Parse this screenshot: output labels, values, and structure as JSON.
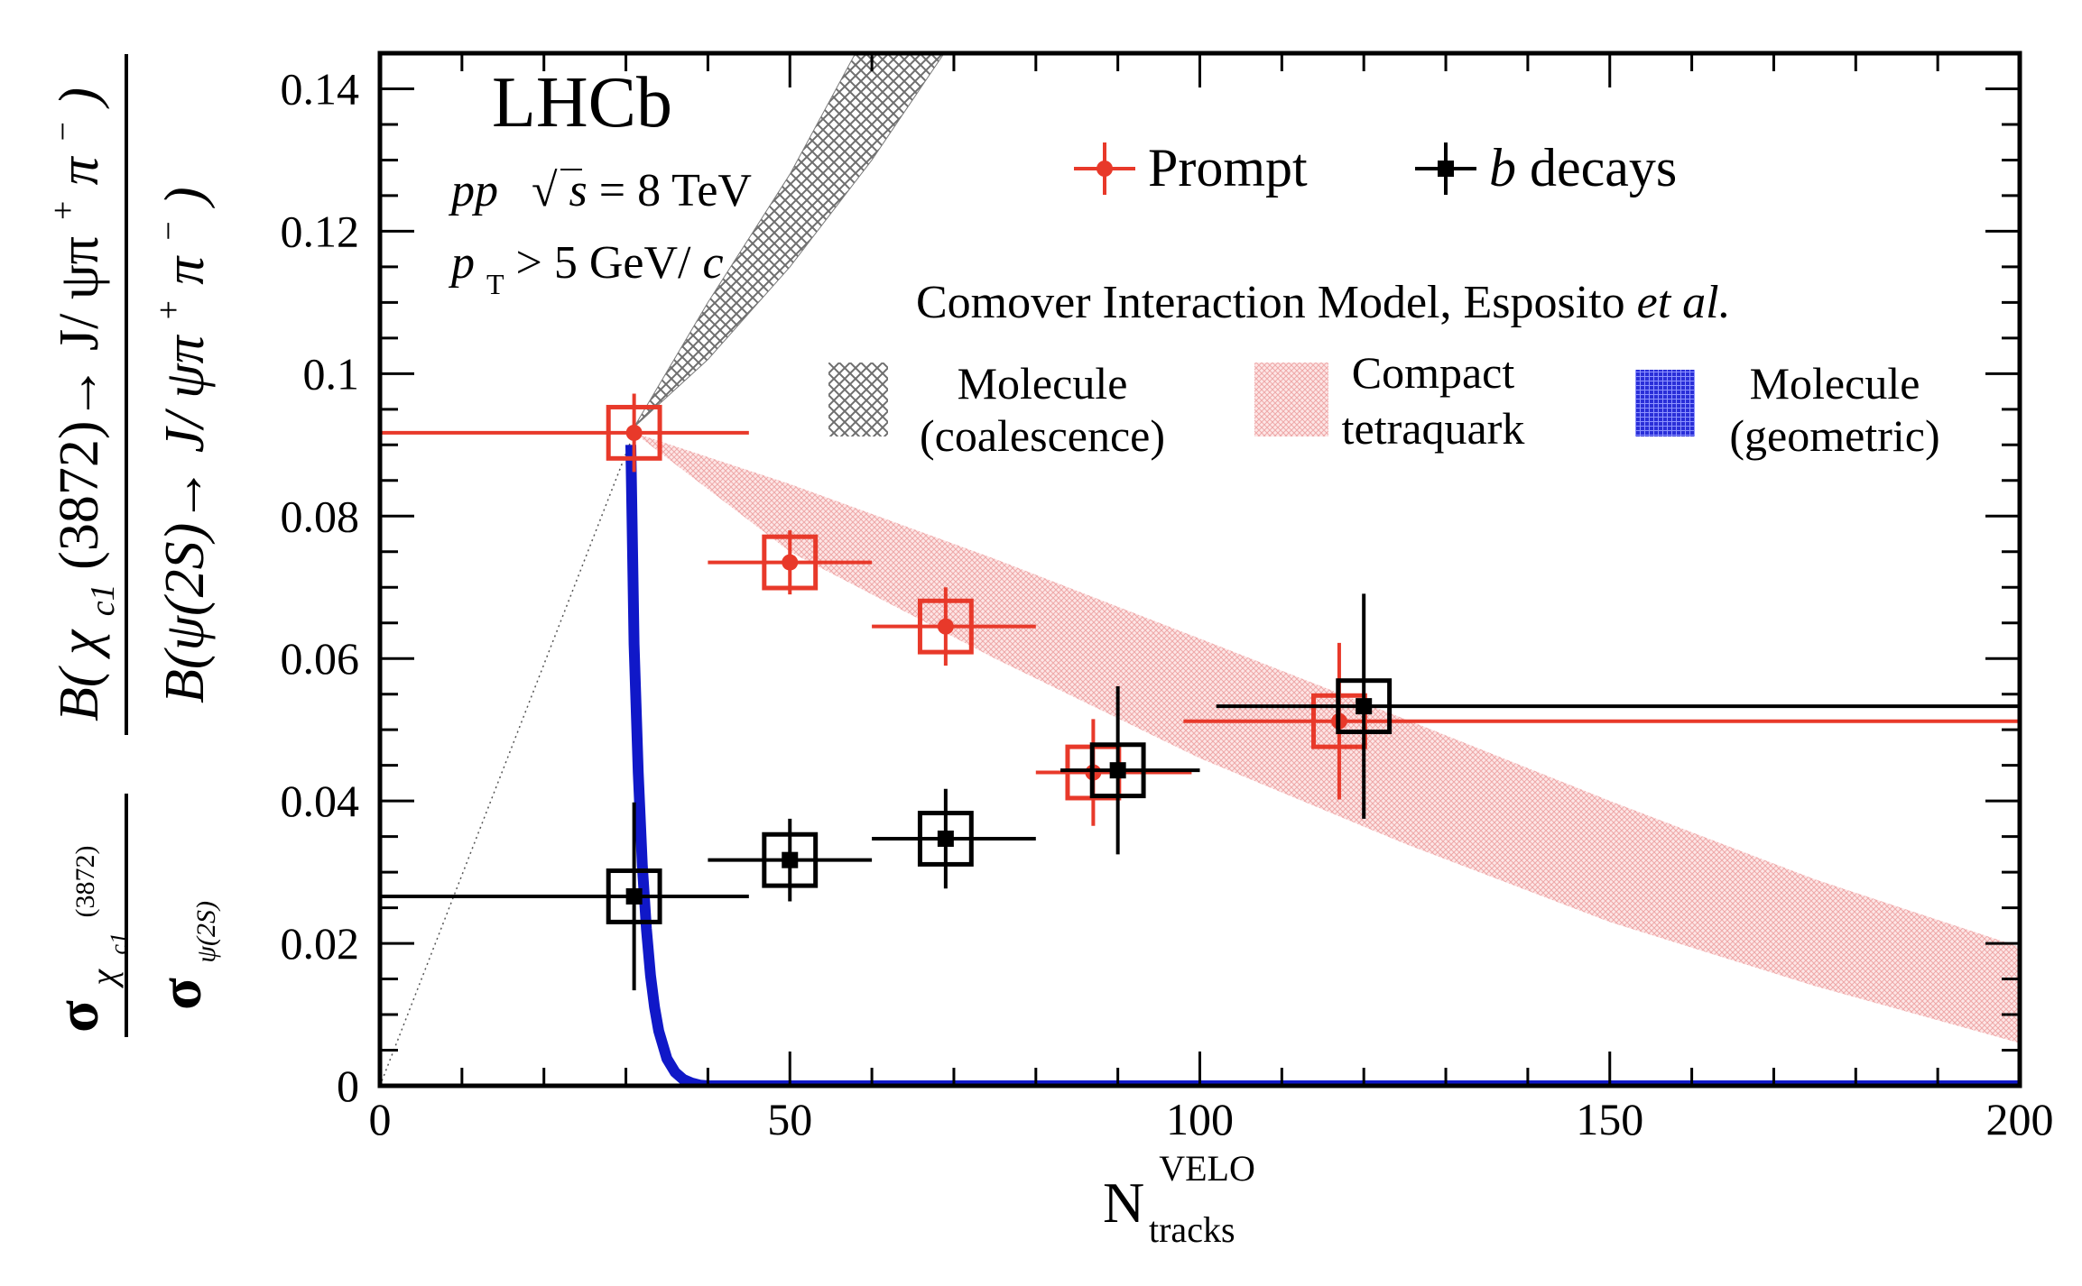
{
  "chart_data": {
    "type": "scatter",
    "experiment_label": "LHCb",
    "energy_label": {
      "pre": "pp",
      "sqrt": "√",
      "s": "s",
      "post": " = 8 TeV"
    },
    "pt_label": {
      "p": "p",
      "sub": "T",
      "post": " > 5 GeV/",
      "c": "c"
    },
    "model_title": {
      "text": "Comover Interaction Model, Esposito ",
      "italic": "et al."
    },
    "xlabel": {
      "main": "N",
      "sup": "VELO",
      "sub": "tracks"
    },
    "ylabel": {
      "sigma": "σ",
      "chi": "χ",
      "c1": "c1",
      "mass": "(3872)",
      "psi": "ψ(2S)",
      "num_prefix": "B(",
      "num_rest": "(3872)→ J/ ψπ",
      "plus": "+",
      "pi": "π",
      "minus": "−",
      "close": ")",
      "den_text": "B(ψ(2S)→ J/ ψπ"
    },
    "xlim": [
      0,
      200
    ],
    "ylim": [
      0,
      0.145
    ],
    "xticks": [
      "0",
      "50",
      "100",
      "150",
      "200"
    ],
    "yticks": [
      "0",
      "0.02",
      "0.04",
      "0.06",
      "0.08",
      "0.1",
      "0.12",
      "0.14"
    ],
    "legend": {
      "prompt": "Prompt",
      "b_decays_b": "b",
      "b_decays_rest": " decays"
    },
    "model_legend": {
      "coalescence": [
        "Molecule",
        "(coalescence)"
      ],
      "tetraquark": [
        "Compact",
        "tetraquark"
      ],
      "geometric": [
        "Molecule",
        "(geometric)"
      ]
    },
    "series": [
      {
        "name": "Prompt",
        "color": "#e8392a",
        "points": [
          {
            "x": 31,
            "y": 0.0917,
            "xerr": [
              31,
              14
            ],
            "yerr": 0.0055,
            "syst": 0.0036
          },
          {
            "x": 50,
            "y": 0.0735,
            "xerr": [
              10,
              10
            ],
            "yerr": 0.0045,
            "syst": 0.0036
          },
          {
            "x": 69,
            "y": 0.0645,
            "xerr": [
              9,
              11
            ],
            "yerr": 0.0055,
            "syst": 0.0036
          },
          {
            "x": 87,
            "y": 0.044,
            "xerr": [
              7,
              12
            ],
            "yerr": 0.0075,
            "syst": 0.0036
          },
          {
            "x": 117,
            "y": 0.0512,
            "xerr": [
              19,
              83
            ],
            "yerr": 0.011,
            "syst": 0.0036
          }
        ]
      },
      {
        "name": "b decays",
        "color": "#000000",
        "points": [
          {
            "x": 31,
            "y": 0.0266,
            "xerr": [
              31,
              14
            ],
            "yerr": 0.0132,
            "syst": 0.0036
          },
          {
            "x": 50,
            "y": 0.0317,
            "xerr": [
              10,
              10
            ],
            "yerr": 0.0058,
            "syst": 0.0036
          },
          {
            "x": 69,
            "y": 0.0347,
            "xerr": [
              9,
              11
            ],
            "yerr": 0.007,
            "syst": 0.0036
          },
          {
            "x": 90,
            "y": 0.0443,
            "xerr": [
              7,
              10
            ],
            "yerr": 0.0118,
            "syst": 0.0036
          },
          {
            "x": 120,
            "y": 0.0533,
            "xerr": [
              18,
              80
            ],
            "yerr": 0.0158,
            "syst": 0.0036
          }
        ]
      }
    ],
    "bands": {
      "coalescence": {
        "color": "#7a7a7a",
        "lower": [
          [
            31,
            0.0925
          ],
          [
            40,
            0.102
          ],
          [
            50,
            0.115
          ],
          [
            60,
            0.13
          ],
          [
            70,
            0.147
          ]
        ],
        "upper": [
          [
            31,
            0.0925
          ],
          [
            40,
            0.11
          ],
          [
            50,
            0.128
          ],
          [
            58,
            0.145
          ]
        ]
      },
      "tetraquark": {
        "color": "#f3b6b6",
        "upper": [
          [
            31,
            0.0917
          ],
          [
            50,
            0.0845
          ],
          [
            75,
            0.074
          ],
          [
            100,
            0.0628
          ],
          [
            125,
            0.0515
          ],
          [
            150,
            0.04
          ],
          [
            175,
            0.029
          ],
          [
            200,
            0.0195
          ]
        ],
        "lower": [
          [
            31,
            0.0917
          ],
          [
            50,
            0.075
          ],
          [
            75,
            0.06
          ],
          [
            100,
            0.046
          ],
          [
            125,
            0.034
          ],
          [
            150,
            0.023
          ],
          [
            175,
            0.014
          ],
          [
            200,
            0.006
          ]
        ]
      },
      "geometric": {
        "color": "#1018c8",
        "curve": [
          [
            30.6,
            0.09
          ],
          [
            31.0,
            0.062
          ],
          [
            31.5,
            0.044
          ],
          [
            32.0,
            0.031
          ],
          [
            32.5,
            0.022
          ],
          [
            33.0,
            0.0155
          ],
          [
            33.5,
            0.011
          ],
          [
            34.0,
            0.0077
          ],
          [
            35.0,
            0.0038
          ],
          [
            36.0,
            0.0019
          ],
          [
            37.0,
            0.0009
          ],
          [
            38.0,
            0.0004
          ],
          [
            39.0,
            0.0001
          ],
          [
            40.0,
            0.0
          ],
          [
            200.0,
            0.0
          ]
        ]
      },
      "dotted_line": [
        [
          0,
          0.0
        ],
        [
          31,
          0.0917
        ]
      ]
    }
  }
}
